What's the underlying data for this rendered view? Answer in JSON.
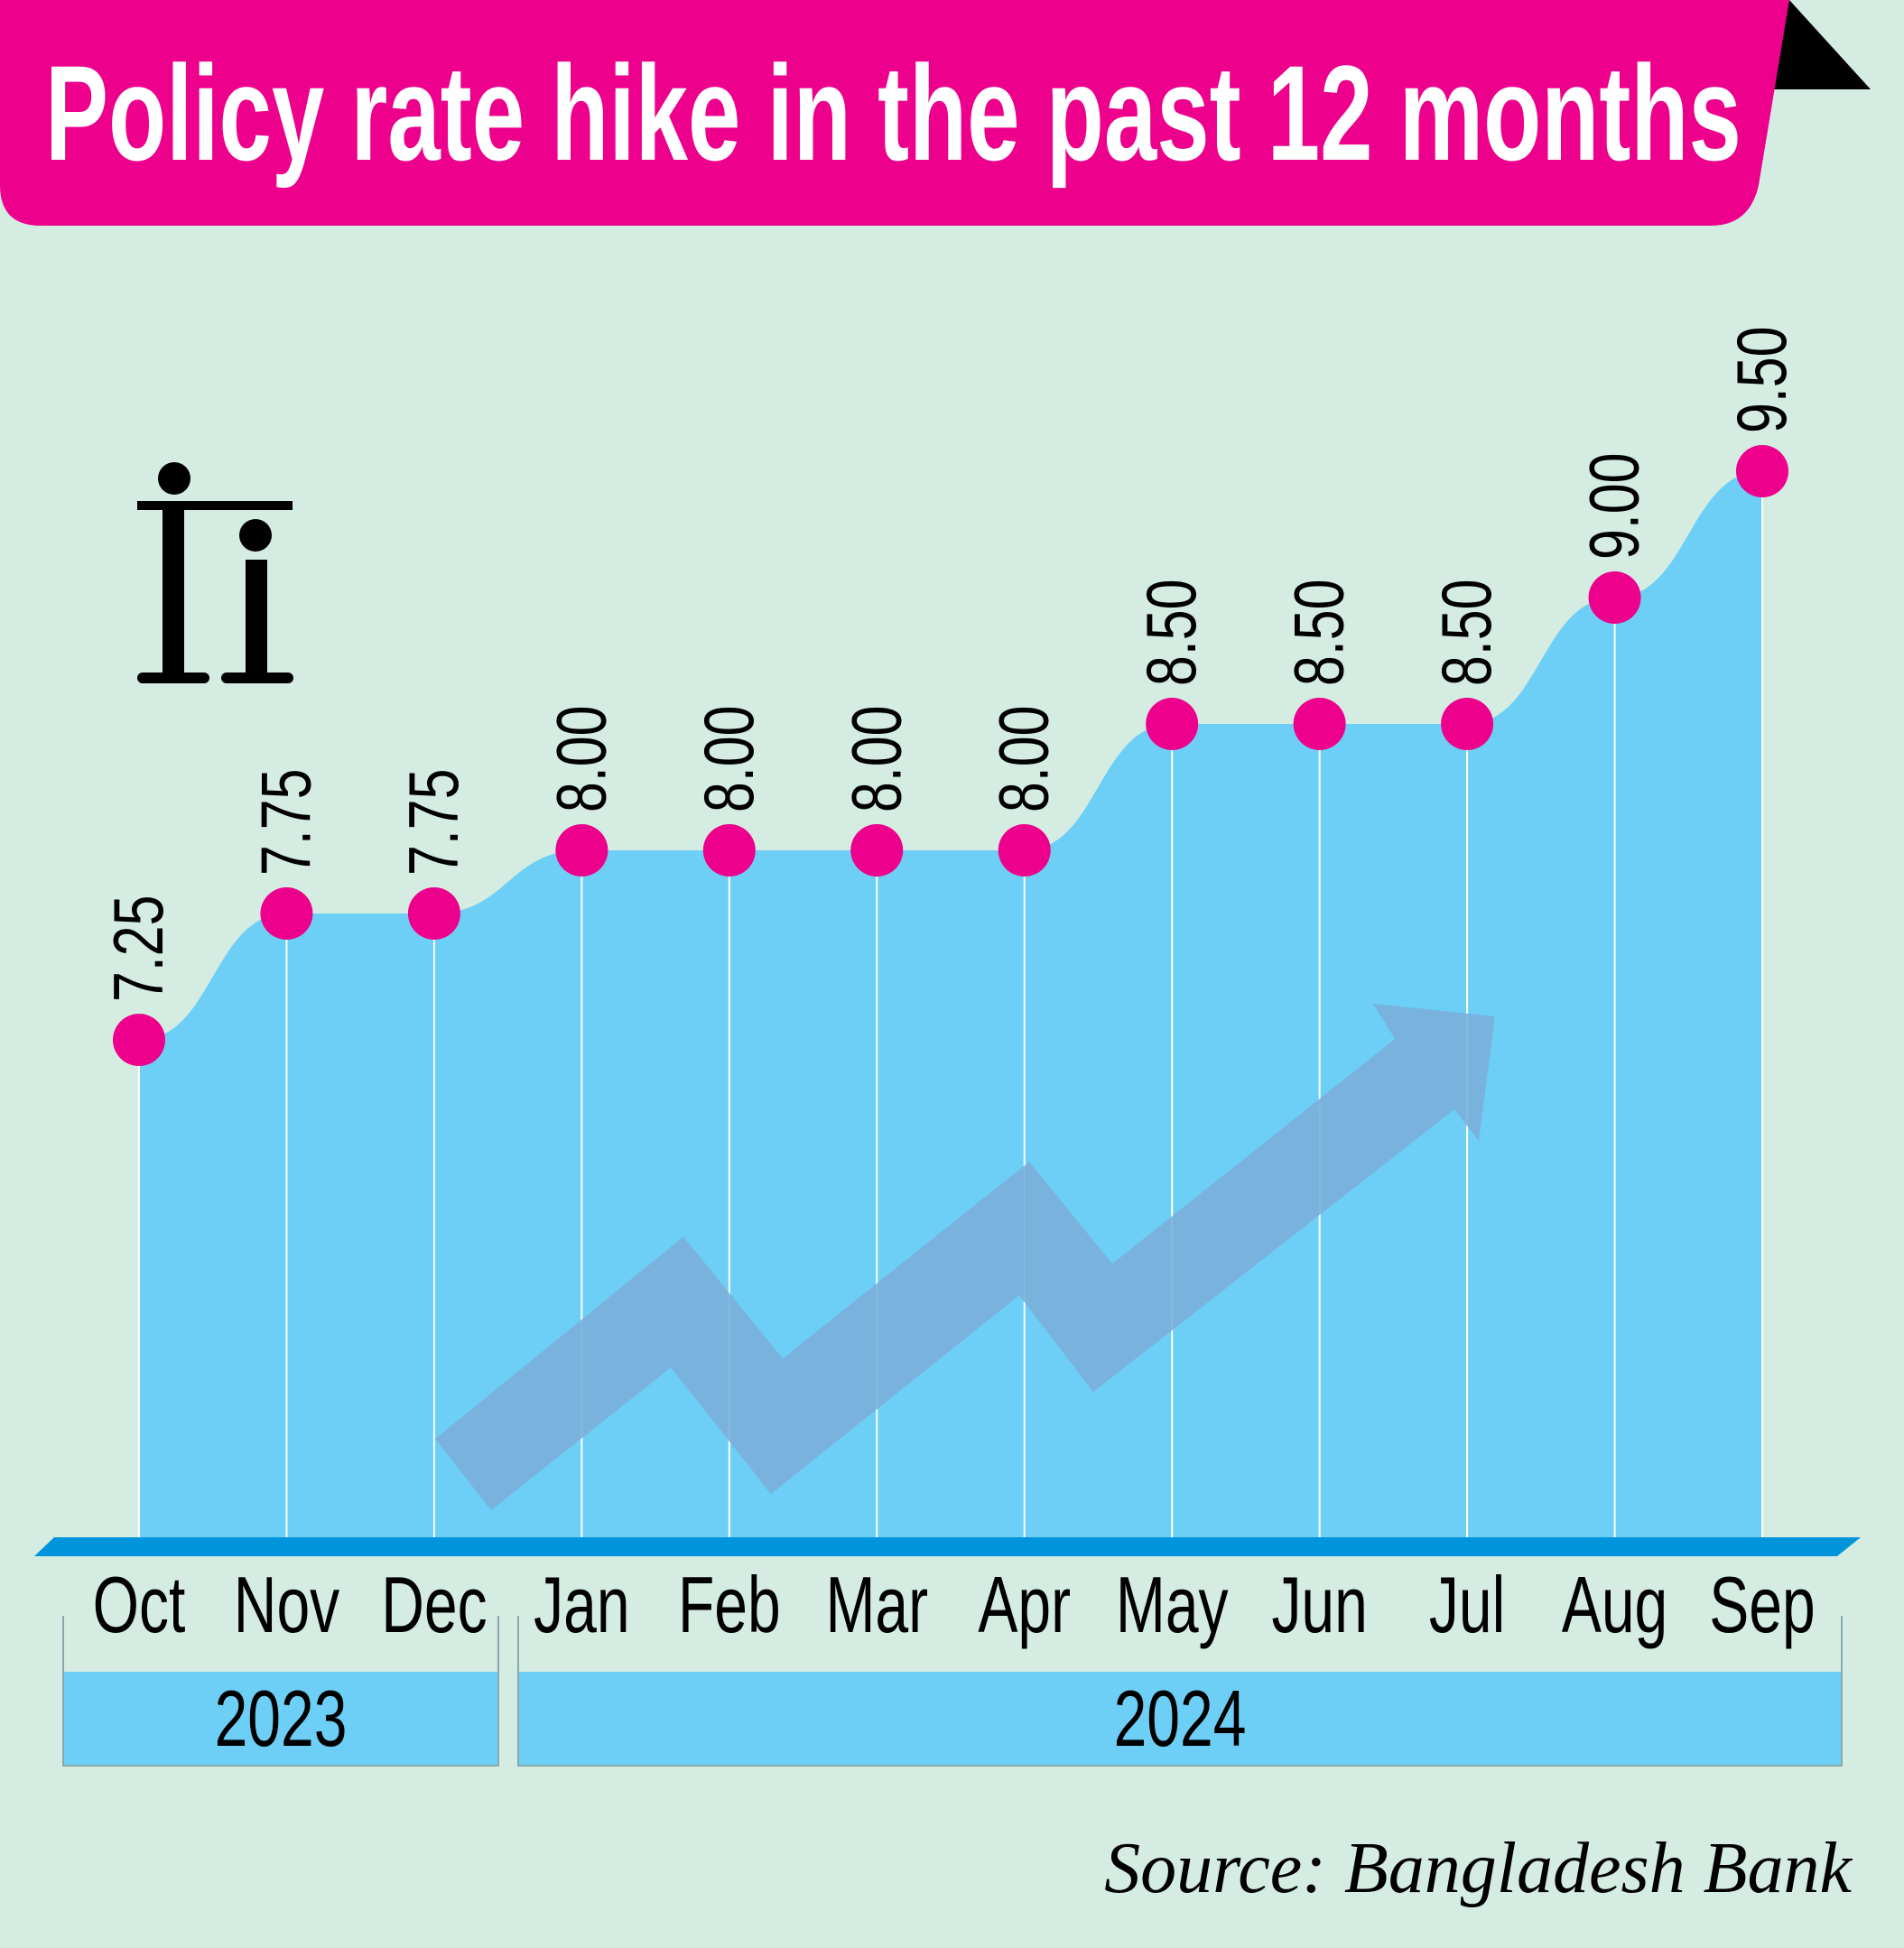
{
  "title": "Policy rate hike in the past 12 months",
  "source": "Source: Bangladesh Bank",
  "colors": {
    "header": "#ec008c",
    "background": "#d4ece2",
    "area": "#6dcff6",
    "marker": "#ec008c",
    "arrow": "#7baedb",
    "baseline": "#0095da"
  },
  "years": [
    {
      "label": "2023",
      "months": [
        "Oct",
        "Nov",
        "Dec"
      ]
    },
    {
      "label": "2024",
      "months": [
        "Jan",
        "Feb",
        "Mar",
        "Apr",
        "May",
        "Jun",
        "Jul",
        "Aug",
        "Sep"
      ]
    }
  ],
  "chart_data": {
    "type": "area",
    "title": "Policy rate hike in the past 12 months",
    "categories": [
      "Oct",
      "Nov",
      "Dec",
      "Jan",
      "Feb",
      "Mar",
      "Apr",
      "May",
      "Jun",
      "Jul",
      "Aug",
      "Sep"
    ],
    "values": [
      7.25,
      7.75,
      7.75,
      8.0,
      8.0,
      8.0,
      8.0,
      8.5,
      8.5,
      8.5,
      9.0,
      9.5
    ],
    "data_labels": [
      "7.25",
      "7.75",
      "7.75",
      "8.00",
      "8.00",
      "8.00",
      "8.00",
      "8.50",
      "8.50",
      "8.50",
      "9.00",
      "9.50"
    ],
    "xlabel": "",
    "ylabel": "",
    "grid": false
  }
}
